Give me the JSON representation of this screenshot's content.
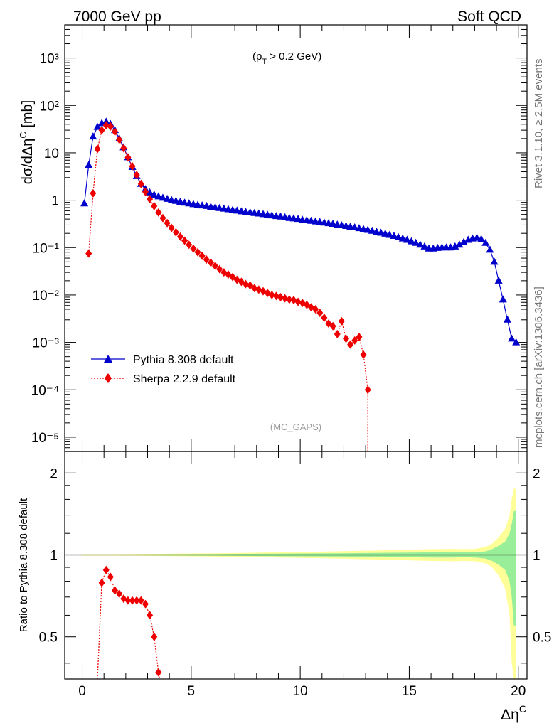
{
  "header": {
    "energy_label": "7000 GeV pp",
    "process_label": "Soft QCD",
    "cut_label": "(p",
    "cut_sub": "T",
    "cut_rest": " > 0.2 GeV)",
    "analysis_label": "(MC_GAPS)",
    "side_rivet": "Rivet 3.1.10, ≥ 2.5M events",
    "side_site": "mcplots.cern.ch [arXiv:1306.3436]"
  },
  "chart_data": [
    {
      "type": "line",
      "ylabel": "dσ/dΔη^C [mb]",
      "ylabel_main": "dσ/dΔη",
      "ylabel_sup": "C",
      "ylabel_unit": " [mb]",
      "xlim": [
        -0.8,
        20.4
      ],
      "ylim": [
        5e-06,
        5000
      ],
      "yscale": "log",
      "ytick_labels": [
        "10⁻⁵",
        "10⁻⁴",
        "10⁻³",
        "10⁻²",
        "10⁻¹",
        "1",
        "10",
        "10²",
        "10³"
      ],
      "legend_position": "lower-left",
      "series": [
        {
          "name": "Pythia 8.308 default",
          "color": "#0000cc",
          "marker": "triangle",
          "x": [
            0.1,
            0.3,
            0.5,
            0.7,
            0.9,
            1.1,
            1.3,
            1.5,
            1.7,
            1.9,
            2.1,
            2.3,
            2.5,
            2.7,
            2.9,
            3.1,
            3.3,
            3.5,
            3.7,
            3.9,
            4.1,
            4.3,
            4.5,
            4.7,
            4.9,
            5.1,
            5.3,
            5.5,
            5.7,
            5.9,
            6.1,
            6.3,
            6.5,
            6.7,
            6.9,
            7.1,
            7.3,
            7.5,
            7.7,
            7.9,
            8.1,
            8.3,
            8.5,
            8.7,
            8.9,
            9.1,
            9.3,
            9.5,
            9.7,
            9.9,
            10.1,
            10.3,
            10.5,
            10.7,
            10.9,
            11.1,
            11.3,
            11.5,
            11.7,
            11.9,
            12.1,
            12.3,
            12.5,
            12.7,
            12.9,
            13.1,
            13.3,
            13.5,
            13.7,
            13.9,
            14.1,
            14.3,
            14.5,
            14.7,
            14.9,
            15.1,
            15.3,
            15.5,
            15.7,
            15.9,
            16.1,
            16.3,
            16.5,
            16.7,
            16.9,
            17.1,
            17.3,
            17.5,
            17.7,
            17.9,
            18.1,
            18.3,
            18.5,
            18.7,
            18.9,
            19.1,
            19.3,
            19.5,
            19.7,
            19.9
          ],
          "y": [
            0.85,
            5.5,
            22,
            35,
            42,
            45,
            40,
            30,
            20,
            13,
            8,
            5,
            3.2,
            2.2,
            1.7,
            1.45,
            1.3,
            1.2,
            1.12,
            1.06,
            1.0,
            0.96,
            0.92,
            0.88,
            0.85,
            0.82,
            0.79,
            0.77,
            0.75,
            0.72,
            0.7,
            0.68,
            0.66,
            0.64,
            0.62,
            0.6,
            0.58,
            0.565,
            0.55,
            0.535,
            0.52,
            0.505,
            0.49,
            0.475,
            0.46,
            0.45,
            0.435,
            0.42,
            0.41,
            0.4,
            0.385,
            0.375,
            0.365,
            0.355,
            0.345,
            0.335,
            0.325,
            0.315,
            0.305,
            0.295,
            0.285,
            0.275,
            0.265,
            0.255,
            0.245,
            0.235,
            0.225,
            0.215,
            0.205,
            0.195,
            0.185,
            0.175,
            0.165,
            0.155,
            0.145,
            0.135,
            0.125,
            0.115,
            0.105,
            0.095,
            0.095,
            0.098,
            0.1,
            0.1,
            0.1,
            0.105,
            0.115,
            0.13,
            0.145,
            0.155,
            0.16,
            0.15,
            0.125,
            0.09,
            0.05,
            0.02,
            0.008,
            0.003,
            0.0012,
            0.001
          ]
        },
        {
          "name": "Sherpa 2.2.9 default",
          "color": "#ee0000",
          "marker": "diamond",
          "x": [
            0.3,
            0.5,
            0.7,
            0.9,
            1.1,
            1.3,
            1.5,
            1.7,
            1.9,
            2.1,
            2.3,
            2.5,
            2.7,
            2.9,
            3.1,
            3.3,
            3.5,
            3.7,
            3.9,
            4.1,
            4.3,
            4.5,
            4.7,
            4.9,
            5.1,
            5.3,
            5.5,
            5.7,
            5.9,
            6.1,
            6.3,
            6.5,
            6.7,
            6.9,
            7.1,
            7.3,
            7.5,
            7.7,
            7.9,
            8.1,
            8.3,
            8.5,
            8.7,
            8.9,
            9.1,
            9.3,
            9.5,
            9.7,
            9.9,
            10.1,
            10.3,
            10.5,
            10.7,
            10.9,
            11.1,
            11.3,
            11.5,
            11.7,
            11.9,
            12.1,
            12.3,
            12.5,
            12.7,
            12.9,
            13.1
          ],
          "y": [
            0.075,
            1.4,
            12,
            30,
            38,
            36,
            28,
            19,
            12.5,
            8,
            5.2,
            3.4,
            2.2,
            1.5,
            1.05,
            0.75,
            0.55,
            0.42,
            0.33,
            0.26,
            0.21,
            0.17,
            0.14,
            0.115,
            0.095,
            0.08,
            0.067,
            0.056,
            0.048,
            0.041,
            0.035,
            0.03,
            0.027,
            0.024,
            0.021,
            0.019,
            0.017,
            0.016,
            0.014,
            0.013,
            0.012,
            0.011,
            0.01,
            0.0095,
            0.009,
            0.0085,
            0.008,
            0.0078,
            0.0072,
            0.0068,
            0.0062,
            0.0055,
            0.005,
            0.0042,
            0.0033,
            0.0025,
            0.0022,
            0.0015,
            0.0028,
            0.0012,
            0.0009,
            0.0011,
            0.0013,
            0.00055,
            0.0001
          ]
        }
      ]
    },
    {
      "type": "line",
      "ylabel": "Ratio to Pythia 8.308 default",
      "xlabel": "Δη^C",
      "xlabel_main": "Δη",
      "xlabel_sup": "C",
      "xlim": [
        -0.8,
        20.4
      ],
      "ylim": [
        0.35,
        2.4
      ],
      "yscale": "log",
      "ytick_labels": [
        "0.5",
        "1",
        "2"
      ],
      "xtick_labels": [
        "0",
        "5",
        "10",
        "15",
        "20"
      ],
      "reference_band": {
        "x": [
          0.0,
          1.0,
          2.0,
          3.0,
          4.0,
          5.0,
          6.0,
          7.0,
          8.0,
          9.0,
          10.0,
          11.0,
          12.0,
          13.0,
          14.0,
          15.0,
          16.0,
          17.0,
          17.5,
          18.0,
          18.5,
          18.8,
          19.1,
          19.4,
          19.6,
          19.7,
          19.8,
          19.9
        ],
        "inner_up": [
          1.003,
          1.003,
          1.003,
          1.004,
          1.005,
          1.006,
          1.007,
          1.008,
          1.01,
          1.011,
          1.012,
          1.013,
          1.014,
          1.016,
          1.018,
          1.02,
          1.022,
          1.022,
          1.021,
          1.022,
          1.03,
          1.05,
          1.08,
          1.12,
          1.2,
          1.3,
          1.45,
          1.45
        ],
        "outer_up": [
          1.006,
          1.006,
          1.007,
          1.008,
          1.01,
          1.012,
          1.014,
          1.016,
          1.019,
          1.022,
          1.025,
          1.028,
          1.032,
          1.036,
          1.04,
          1.045,
          1.05,
          1.052,
          1.05,
          1.052,
          1.07,
          1.1,
          1.16,
          1.25,
          1.4,
          1.6,
          1.75,
          1.75
        ]
      },
      "series": [
        {
          "name": "Sherpa 2.2.9 default",
          "color": "#ee0000",
          "marker": "diamond",
          "x": [
            0.9,
            1.1,
            1.3,
            1.5,
            1.7,
            1.9,
            2.1,
            2.3,
            2.5,
            2.7,
            2.9,
            3.1,
            3.3,
            3.5
          ],
          "y": [
            0.79,
            0.88,
            0.83,
            0.74,
            0.72,
            0.69,
            0.68,
            0.68,
            0.68,
            0.68,
            0.66,
            0.6,
            0.5,
            0.37
          ]
        }
      ]
    }
  ]
}
